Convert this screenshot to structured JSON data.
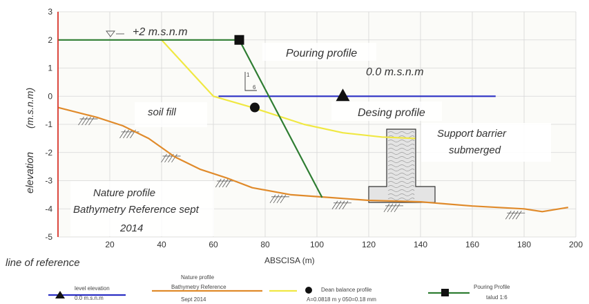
{
  "chart_data": {
    "type": "line",
    "xlabel": "ABSCISA (m)",
    "ylabel_word": "elevation",
    "ylabel_unit": "(m.s.n.m)",
    "xlim": [
      0,
      200
    ],
    "ylim": [
      -5,
      3
    ],
    "x_ticks": [
      "20",
      "40",
      "60",
      "80",
      "100",
      "120",
      "140",
      "160",
      "180",
      "200"
    ],
    "y_ticks": [
      "3",
      "2",
      "1",
      "0",
      "-1",
      "-2",
      "-3",
      "-4",
      "-5"
    ],
    "grid": true,
    "series": [
      {
        "key": "level",
        "color": "#2b2fc4",
        "points": [
          [
            62,
            0
          ],
          [
            169,
            0
          ]
        ]
      },
      {
        "key": "nature",
        "color": "#e08a2a",
        "points": [
          [
            0,
            -0.4
          ],
          [
            15,
            -0.75
          ],
          [
            25,
            -1.05
          ],
          [
            35,
            -1.5
          ],
          [
            45,
            -2.15
          ],
          [
            55,
            -2.6
          ],
          [
            65,
            -2.9
          ],
          [
            75,
            -3.25
          ],
          [
            90,
            -3.5
          ],
          [
            105,
            -3.6
          ],
          [
            120,
            -3.7
          ],
          [
            140,
            -3.75
          ],
          [
            160,
            -3.9
          ],
          [
            180,
            -4.0
          ],
          [
            187,
            -4.1
          ],
          [
            197,
            -3.95
          ]
        ]
      },
      {
        "key": "dean",
        "color": "#f0e842",
        "points": [
          [
            40,
            2
          ],
          [
            52,
            0.8
          ],
          [
            60,
            0
          ],
          [
            75,
            -0.4
          ],
          [
            95,
            -1.0
          ],
          [
            110,
            -1.3
          ],
          [
            125,
            -1.45
          ],
          [
            138,
            -1.5
          ]
        ]
      },
      {
        "key": "pouring",
        "color": "#2e7d32",
        "points": [
          [
            0,
            2
          ],
          [
            70,
            2
          ],
          [
            102,
            -3.6
          ]
        ]
      }
    ],
    "markers": [
      {
        "shape": "square",
        "x": 70,
        "y": 2
      },
      {
        "shape": "triangle",
        "x": 110,
        "y": 0
      },
      {
        "shape": "circle",
        "x": 76,
        "y": -0.4
      }
    ],
    "annotations": {
      "level_top": "+2  m.s.n.m",
      "level_zero": "0.0  m.s.n.m",
      "pouring": "Pouring profile",
      "design": "Desing profile",
      "soil_fill": "soil fill",
      "barrier_line1": "Support barrier",
      "barrier_line2": "submerged",
      "nature_line1": "Nature profile",
      "nature_line2": "Bathymetry Reference sept",
      "nature_line3": "2014",
      "slope_1": "1",
      "slope_6": "6",
      "reference": "line of reference"
    },
    "legend": {
      "placement": "bottom",
      "level_title": "level elevation",
      "level_value": "0.0  m.s.n.m",
      "nature_title": "Nature profile",
      "nature_sub": "Bathymetry Reference",
      "nature_date": "Sept  2014",
      "dean_title": "Dean balance profile",
      "dean_params": "A=0.0818  m  y  050=0.18  mm",
      "pouring_title": "Pouring Profile",
      "pouring_sub": "talud  1:6"
    }
  }
}
